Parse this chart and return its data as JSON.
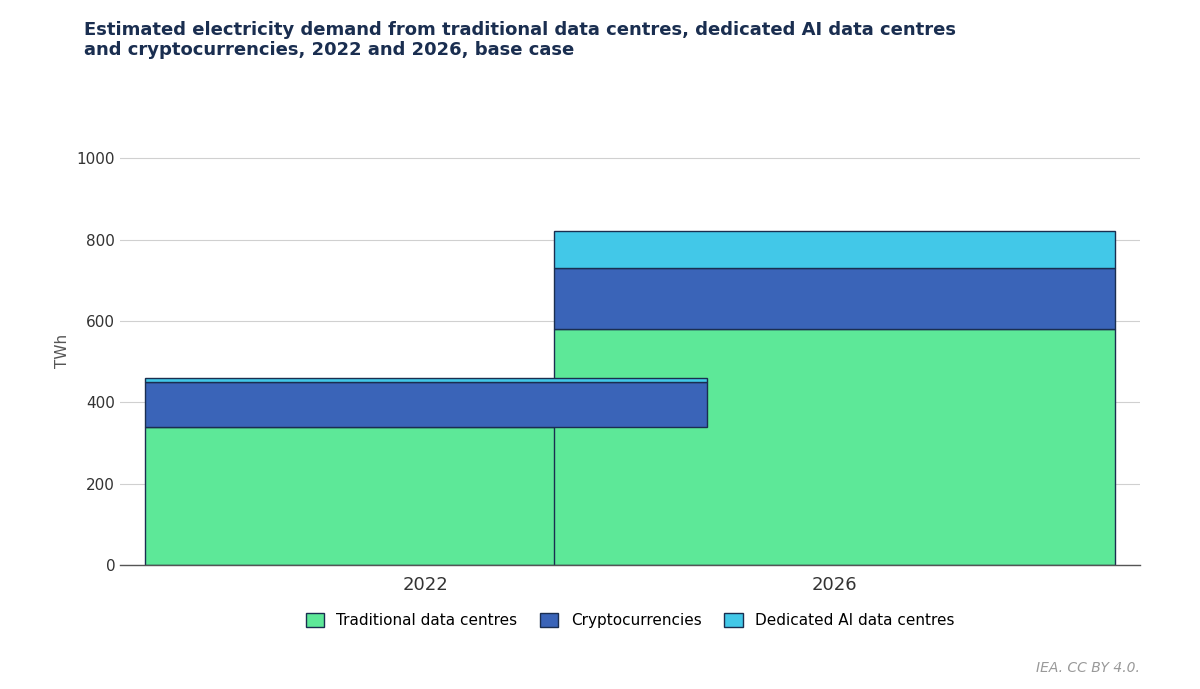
{
  "title": "Estimated electricity demand from traditional data centres, dedicated AI data centres\nand cryptocurrencies, 2022 and 2026, base case",
  "title_fontsize": 13,
  "categories": [
    "2022",
    "2026"
  ],
  "traditional": [
    340,
    580
  ],
  "crypto": [
    110,
    150
  ],
  "ai": [
    10,
    90
  ],
  "color_traditional": "#5de898",
  "color_crypto": "#3a64b8",
  "color_ai": "#42c8e8",
  "color_border": "#1a2e50",
  "ylabel": "TWh",
  "ylim": [
    0,
    1050
  ],
  "yticks": [
    0,
    200,
    400,
    600,
    800,
    1000
  ],
  "legend_labels": [
    "Traditional data centres",
    "Cryptocurrencies",
    "Dedicated AI data centres"
  ],
  "footer": "IEA. CC BY 4.0.",
  "background_color": "#ffffff",
  "bar_width": 0.55
}
